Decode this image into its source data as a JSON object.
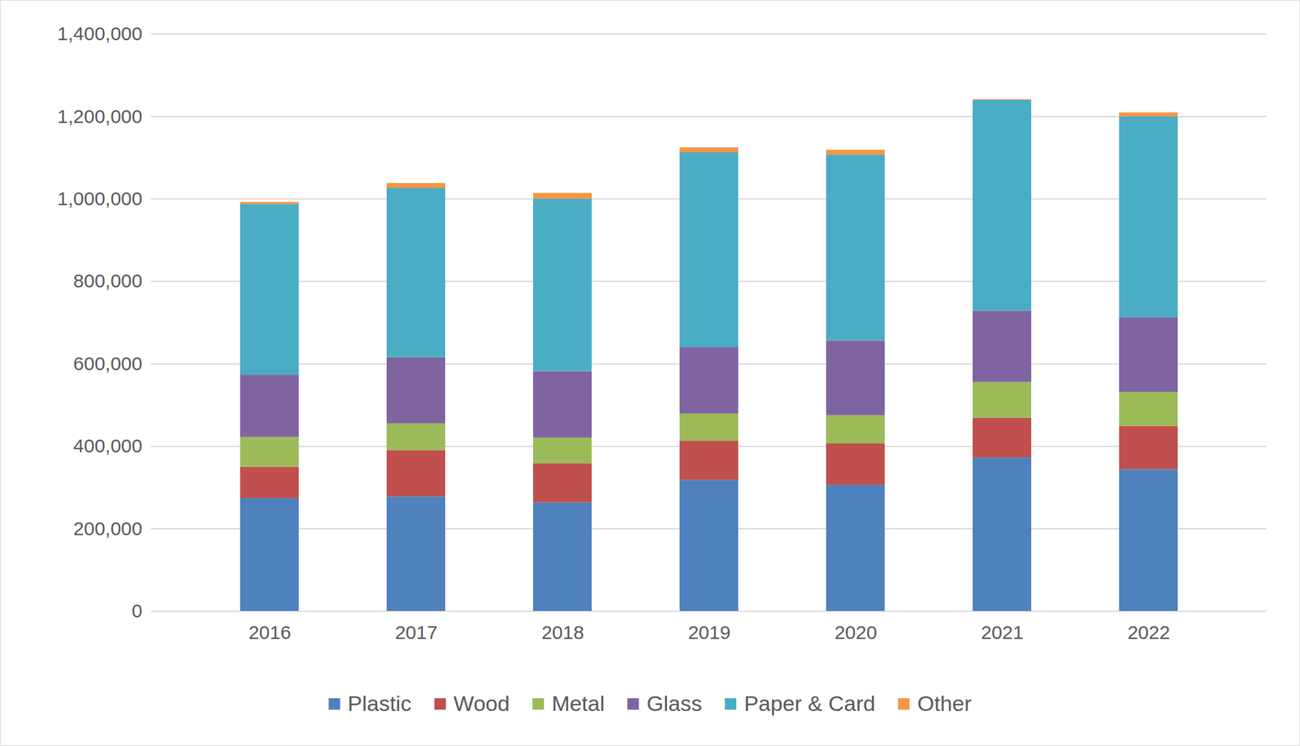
{
  "chart_data": {
    "type": "bar",
    "stacked": true,
    "grid": true,
    "categories": [
      "2016",
      "2017",
      "2018",
      "2019",
      "2020",
      "2021",
      "2022"
    ],
    "series": [
      {
        "name": "Plastic",
        "color": "#4f81bd",
        "values": [
          273600,
          277700,
          263600,
          317900,
          305800,
          372200,
          344100
        ]
      },
      {
        "name": "Wood",
        "color": "#c0504d",
        "values": [
          76000,
          112600,
          94500,
          94600,
          100600,
          96600,
          104600
        ]
      },
      {
        "name": "Metal",
        "color": "#9bbb59",
        "values": [
          72500,
          64400,
          62400,
          66400,
          68400,
          86500,
          82500
        ]
      },
      {
        "name": "Glass",
        "color": "#8064a2",
        "values": [
          151000,
          161000,
          161000,
          160900,
          181100,
          173000,
          181000
        ]
      },
      {
        "name": "Paper & Card",
        "color": "#4bacc6",
        "values": [
          414000,
          410400,
          418500,
          472800,
          450700,
          511100,
          487000
        ]
      },
      {
        "name": "Other",
        "color": "#f79646",
        "values": [
          5000,
          12000,
          14000,
          12000,
          12000,
          2000,
          10000
        ]
      }
    ],
    "ylim": [
      0,
      1400000
    ],
    "yticks": [
      0,
      {
        "value": 200000,
        "label": "200,000"
      },
      {
        "value": 400000,
        "label": "400,000"
      },
      {
        "value": 600000,
        "label": "600,000"
      },
      {
        "value": 800000,
        "label": "800,000"
      },
      {
        "value": 1000000,
        "label": "1,000,000"
      },
      {
        "value": 1200000,
        "label": "1,200,000"
      },
      {
        "value": 1400000,
        "label": "1,400,000"
      }
    ],
    "legend": "bottom"
  }
}
